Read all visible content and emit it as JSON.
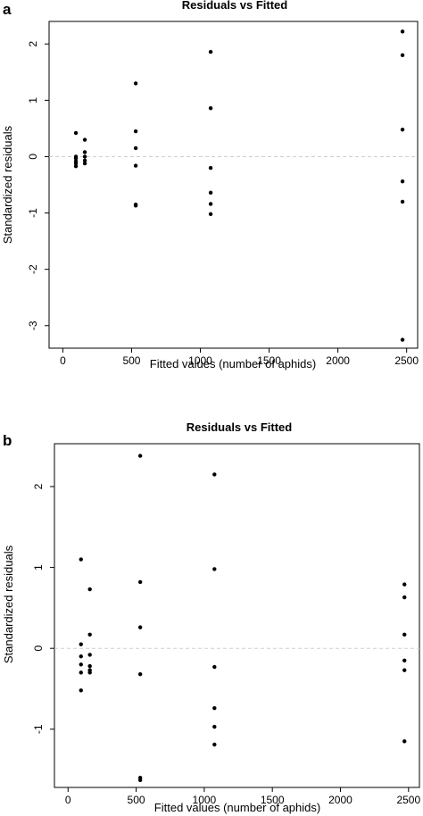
{
  "chart_data": [
    {
      "type": "scatter",
      "panel_label": "a",
      "title": "Residuals vs Fitted",
      "xlabel": "Fitted values (number of aphids)",
      "ylabel": "Standardized residuals",
      "xlim": [
        -100,
        2580
      ],
      "ylim": [
        -3.4,
        2.4
      ],
      "xticks": [
        0,
        500,
        1000,
        1500,
        2000,
        2500
      ],
      "yticks": [
        -3,
        -2,
        -1,
        0,
        1,
        2
      ],
      "reference_line": 0,
      "grid": false,
      "points": [
        {
          "x": 95,
          "y": 0.42
        },
        {
          "x": 95,
          "y": 0.0
        },
        {
          "x": 95,
          "y": -0.03
        },
        {
          "x": 95,
          "y": -0.08
        },
        {
          "x": 95,
          "y": -0.12
        },
        {
          "x": 95,
          "y": -0.17
        },
        {
          "x": 160,
          "y": 0.3
        },
        {
          "x": 160,
          "y": 0.08
        },
        {
          "x": 160,
          "y": 0.0
        },
        {
          "x": 160,
          "y": -0.07
        },
        {
          "x": 160,
          "y": -0.12
        },
        {
          "x": 530,
          "y": 1.3
        },
        {
          "x": 530,
          "y": 0.45
        },
        {
          "x": 530,
          "y": 0.15
        },
        {
          "x": 530,
          "y": -0.16
        },
        {
          "x": 530,
          "y": -0.85
        },
        {
          "x": 530,
          "y": -0.87
        },
        {
          "x": 1075,
          "y": 1.86
        },
        {
          "x": 1075,
          "y": 0.86
        },
        {
          "x": 1075,
          "y": -0.2
        },
        {
          "x": 1075,
          "y": -0.64
        },
        {
          "x": 1075,
          "y": -0.84
        },
        {
          "x": 1075,
          "y": -1.02
        },
        {
          "x": 2470,
          "y": 2.22
        },
        {
          "x": 2470,
          "y": 1.8
        },
        {
          "x": 2470,
          "y": 0.48
        },
        {
          "x": 2470,
          "y": -0.44
        },
        {
          "x": 2470,
          "y": -0.8
        },
        {
          "x": 2470,
          "y": -3.25
        }
      ]
    },
    {
      "type": "scatter",
      "panel_label": "b",
      "title": "Residuals vs Fitted",
      "xlabel": "Fitted values (number of aphids)",
      "ylabel": "Standardized residuals",
      "xlim": [
        -100,
        2580
      ],
      "ylim": [
        -1.72,
        2.53
      ],
      "xticks": [
        0,
        500,
        1000,
        1500,
        2000,
        2500
      ],
      "yticks": [
        -1,
        0,
        1,
        2
      ],
      "reference_line": 0,
      "grid": false,
      "points": [
        {
          "x": 95,
          "y": 1.1
        },
        {
          "x": 95,
          "y": 0.05
        },
        {
          "x": 95,
          "y": -0.1
        },
        {
          "x": 95,
          "y": -0.2
        },
        {
          "x": 95,
          "y": -0.3
        },
        {
          "x": 95,
          "y": -0.52
        },
        {
          "x": 160,
          "y": 0.73
        },
        {
          "x": 160,
          "y": 0.17
        },
        {
          "x": 160,
          "y": -0.08
        },
        {
          "x": 160,
          "y": -0.22
        },
        {
          "x": 160,
          "y": -0.27
        },
        {
          "x": 160,
          "y": -0.3
        },
        {
          "x": 530,
          "y": 2.38
        },
        {
          "x": 530,
          "y": 0.82
        },
        {
          "x": 530,
          "y": 0.26
        },
        {
          "x": 530,
          "y": -0.32
        },
        {
          "x": 530,
          "y": -1.6
        },
        {
          "x": 530,
          "y": -1.63
        },
        {
          "x": 1075,
          "y": 2.15
        },
        {
          "x": 1075,
          "y": 0.98
        },
        {
          "x": 1075,
          "y": -0.23
        },
        {
          "x": 1075,
          "y": -0.74
        },
        {
          "x": 1075,
          "y": -0.97
        },
        {
          "x": 1075,
          "y": -1.19
        },
        {
          "x": 2470,
          "y": 0.79
        },
        {
          "x": 2470,
          "y": 0.63
        },
        {
          "x": 2470,
          "y": 0.17
        },
        {
          "x": 2470,
          "y": -0.15
        },
        {
          "x": 2470,
          "y": -0.27
        },
        {
          "x": 2470,
          "y": -1.15
        }
      ]
    }
  ]
}
